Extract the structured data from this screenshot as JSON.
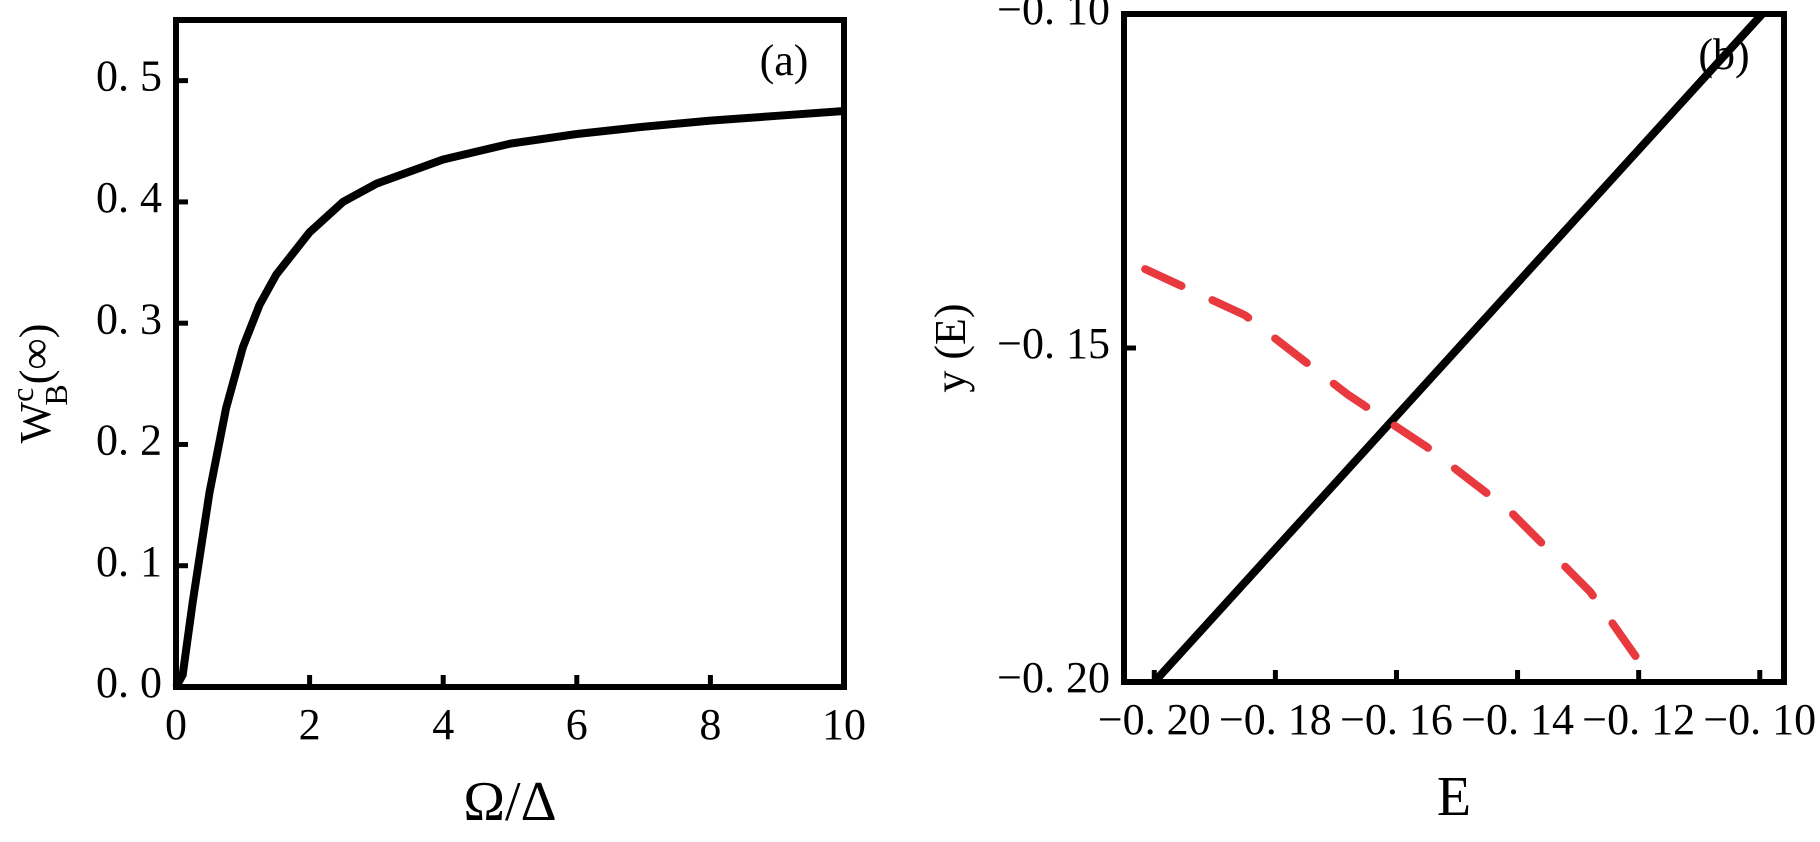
{
  "chart_data": [
    {
      "type": "line",
      "panel_label": "(a)",
      "xlabel": "Ω/Δ",
      "ylabel": {
        "base": "W",
        "sup": "c",
        "sub": "B",
        "arg": "(∞)"
      },
      "xlim": [
        0,
        10
      ],
      "xticks": [
        0,
        2,
        4,
        6,
        8,
        10
      ],
      "ylim": [
        0,
        0.55
      ],
      "yticks": [
        {
          "value": 0,
          "label": "0. 0"
        },
        {
          "value": 0.1,
          "label": "0. 1"
        },
        {
          "value": 0.2,
          "label": "0. 2"
        },
        {
          "value": 0.3,
          "label": "0. 3"
        },
        {
          "value": 0.4,
          "label": "0. 4"
        },
        {
          "value": 0.5,
          "label": "0. 5"
        }
      ],
      "series": [
        {
          "color": "#000000",
          "dashed": false,
          "x": [
            0,
            0.1,
            0.25,
            0.5,
            0.75,
            1,
            1.25,
            1.5,
            2,
            2.5,
            3,
            4,
            5,
            6,
            7,
            8,
            9,
            10
          ],
          "values": [
            0,
            0.01,
            0.07,
            0.16,
            0.23,
            0.28,
            0.315,
            0.34,
            0.375,
            0.4,
            0.415,
            0.435,
            0.448,
            0.456,
            0.462,
            0.467,
            0.471,
            0.475
          ]
        }
      ]
    },
    {
      "type": "line",
      "panel_label": "(b)",
      "xlabel": "E",
      "ylabel": "y (E)",
      "xlim": [
        -0.205,
        -0.096
      ],
      "xticks": [
        {
          "value": -0.2,
          "label": "−0. 20"
        },
        {
          "value": -0.18,
          "label": "−0. 18"
        },
        {
          "value": -0.16,
          "label": "−0. 16"
        },
        {
          "value": -0.14,
          "label": "−0. 14"
        },
        {
          "value": -0.12,
          "label": "−0. 12"
        },
        {
          "value": -0.1,
          "label": "−0. 10"
        }
      ],
      "ylim": [
        -0.2,
        -0.1
      ],
      "yticks": [
        {
          "value": -0.2,
          "label": "−0. 20"
        },
        {
          "value": -0.15,
          "label": "−0. 15"
        },
        {
          "value": -0.1,
          "label": "−0. 10"
        }
      ],
      "series": [
        {
          "color": "#000000",
          "dashed": false,
          "x": [
            -0.2,
            -0.0996
          ],
          "values": [
            -0.2,
            -0.1
          ]
        },
        {
          "color": "#e8393f",
          "dashed": true,
          "x": [
            -0.2015,
            -0.185,
            -0.168,
            -0.155,
            -0.1414,
            -0.128,
            -0.1175
          ],
          "values": [
            -0.1382,
            -0.1451,
            -0.157,
            -0.1648,
            -0.1743,
            -0.1865,
            -0.2
          ]
        }
      ]
    }
  ]
}
